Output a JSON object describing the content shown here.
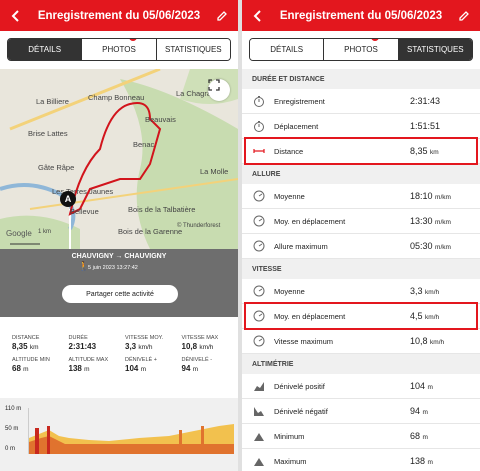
{
  "colors": {
    "brand": "#e3171e",
    "highlight": "#e3171e",
    "dark_tab": "#333333"
  },
  "left": {
    "title": "Enregistrement du 05/06/2023",
    "tabs": [
      {
        "label": "DÉTAILS",
        "active": true
      },
      {
        "label": "PHOTOS",
        "badge": "3"
      },
      {
        "label": "STATISTIQUES"
      }
    ],
    "map": {
      "labels": [
        "La Billiere",
        "Champ Bonneau",
        "La Chagra",
        "Beauvais",
        "Brise Lattes",
        "Benac",
        "Gâte Râpe",
        "Les Terres Jaunes",
        "La Molle",
        "Bellevue",
        "Bois de la Talbatière",
        "Bois de la Garenne",
        "La Bouchère",
        "Accolais"
      ],
      "map_labels2": [
        "Chauvigny"
      ],
      "attribution": "© Thunderforest",
      "marker": "A",
      "google": "Google",
      "scale": "1 km"
    },
    "activity": {
      "route": "CHAUVIGNY → CHAUVIGNY",
      "date": "5 juin 2023 13:27:42",
      "share": "Partager cette activité"
    },
    "stats": [
      [
        {
          "label": "DISTANCE",
          "value": "8,35",
          "unit": "km"
        },
        {
          "label": "DURÉE",
          "value": "2:31:43",
          "unit": ""
        },
        {
          "label": "VITESSE MOY.",
          "value": "3,3",
          "unit": "km/h"
        },
        {
          "label": "VITESSE MAX",
          "value": "10,8",
          "unit": "km/h"
        }
      ],
      [
        {
          "label": "ALTITUDE MIN",
          "value": "68",
          "unit": "m"
        },
        {
          "label": "ALTITUDE MAX",
          "value": "138",
          "unit": "m"
        },
        {
          "label": "DÉNIVELÉ +",
          "value": "104",
          "unit": "m"
        },
        {
          "label": "DÉNIVELÉ -",
          "value": "94",
          "unit": "m"
        }
      ]
    ],
    "graph": {
      "yticks": [
        "110 m",
        "50 m",
        "0 m"
      ]
    }
  },
  "right": {
    "title": "Enregistrement du 05/06/2023",
    "tabs": [
      {
        "label": "DÉTAILS"
      },
      {
        "label": "PHOTOS",
        "badge": "3"
      },
      {
        "label": "STATISTIQUES",
        "active": true
      }
    ],
    "sections": [
      {
        "title": "DURÉE ET DISTANCE",
        "rows": [
          {
            "icon": "stopwatch-icon",
            "label": "Enregistrement",
            "value": "2:31:43",
            "unit": ""
          },
          {
            "icon": "stopwatch-icon",
            "label": "Déplacement",
            "value": "1:51:51",
            "unit": ""
          },
          {
            "icon": "ruler-icon",
            "label": "Distance",
            "value": "8,35",
            "unit": "km",
            "highlight": true
          }
        ]
      },
      {
        "title": "ALLURE",
        "rows": [
          {
            "icon": "gauge-icon",
            "label": "Moyenne",
            "value": "18:10",
            "unit": "m/km"
          },
          {
            "icon": "gauge-icon",
            "label": "Moy. en déplacement",
            "value": "13:30",
            "unit": "m/km"
          },
          {
            "icon": "gauge-icon",
            "label": "Allure maximum",
            "value": "05:30",
            "unit": "m/km"
          }
        ]
      },
      {
        "title": "VITESSE",
        "rows": [
          {
            "icon": "gauge-icon",
            "label": "Moyenne",
            "value": "3,3",
            "unit": "km/h"
          },
          {
            "icon": "gauge-icon",
            "label": "Moy. en déplacement",
            "value": "4,5",
            "unit": "km/h",
            "highlight": true
          },
          {
            "icon": "gauge-icon",
            "label": "Vitesse maximum",
            "value": "10,8",
            "unit": "km/h"
          }
        ]
      },
      {
        "title": "ALTIMÉTRIE",
        "rows": [
          {
            "icon": "elevation-up-icon",
            "label": "Dénivelé positif",
            "value": "104",
            "unit": "m"
          },
          {
            "icon": "elevation-down-icon",
            "label": "Dénivelé négatif",
            "value": "94",
            "unit": "m"
          },
          {
            "icon": "mountain-icon",
            "label": "Minimum",
            "value": "68",
            "unit": "m"
          },
          {
            "icon": "mountain-icon",
            "label": "Maximum",
            "value": "138",
            "unit": "m"
          }
        ]
      }
    ]
  }
}
